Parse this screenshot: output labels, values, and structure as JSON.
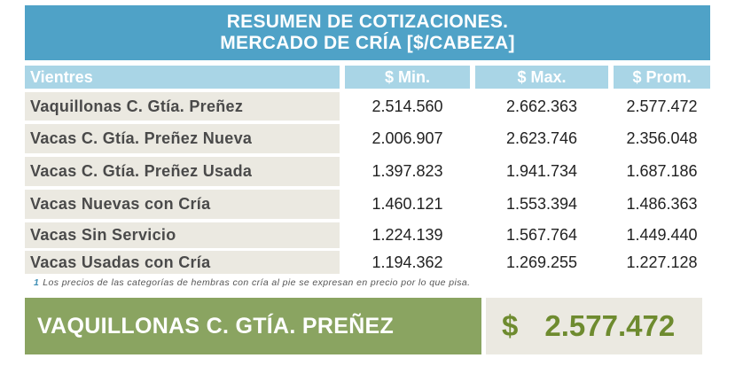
{
  "header": {
    "line1": "RESUMEN DE COTIZACIONES.",
    "line2": "MERCADO DE CRÍA [$/CABEZA]"
  },
  "table": {
    "columns": [
      "Vientres",
      "$ Min.",
      "$ Max.",
      "$ Prom."
    ],
    "rows": [
      {
        "category": "Vaquillonas C. Gtía. Preñez",
        "min": "2.514.560",
        "max": "2.662.363",
        "prom": "2.577.472"
      },
      {
        "category": "Vacas C. Gtía. Preñez Nueva",
        "min": "2.006.907",
        "max": "2.623.746",
        "prom": "2.356.048"
      },
      {
        "category": "Vacas C. Gtía. Preñez Usada",
        "min": "1.397.823",
        "max": "1.941.734",
        "prom": "1.687.186"
      },
      {
        "category": "Vacas Nuevas con Cría",
        "min": "1.460.121",
        "max": "1.553.394",
        "prom": "1.486.363"
      },
      {
        "category": "Vacas Sin Servicio",
        "min": "1.224.139",
        "max": "1.567.764",
        "prom": "1.449.440"
      },
      {
        "category": "Vacas Usadas con Cría",
        "min": "1.194.362",
        "max": "1.269.255",
        "prom": "1.227.128"
      }
    ]
  },
  "footnote": {
    "number": "1",
    "text": "Los precios de las categorías de hembras con cría al pie se expresan en precio por lo que pisa."
  },
  "highlight": {
    "label": "VAQUILLONAS C. GTÍA. PREÑEZ",
    "currency": "$",
    "value": "2.577.472"
  },
  "colors": {
    "header_bg": "#4fa2c7",
    "column_header_bg": "#a9d5e6",
    "category_bg": "#ebe9e1",
    "highlight_label_bg": "#8aa461",
    "highlight_value_color": "#6e8b2f"
  }
}
